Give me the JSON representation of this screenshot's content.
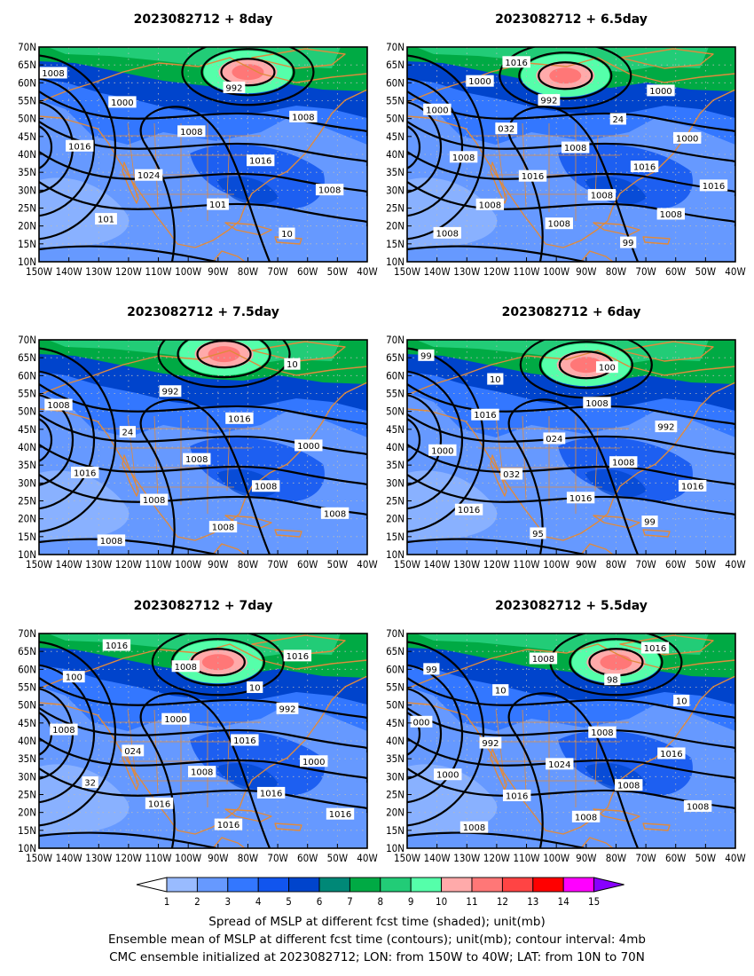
{
  "panels": [
    {
      "id": "p8",
      "title": "2023082712 + 8day",
      "low": {
        "lon": -80,
        "lat": 63,
        "label": "992"
      },
      "labels": [
        "1008",
        "992",
        "1000",
        "1008",
        "1008",
        "1016",
        "1016",
        "1024",
        "1008",
        "101",
        "101",
        "10"
      ]
    },
    {
      "id": "p65",
      "title": "2023082712 + 6.5day",
      "low": {
        "lon": -97,
        "lat": 62,
        "label": "992"
      },
      "labels": [
        "1000",
        "1000",
        "992",
        "1000",
        "24",
        "032",
        "1000",
        "1008",
        "1008",
        "1016",
        "1016",
        "1016",
        "1008",
        "1008",
        "1008",
        "1008",
        "1008",
        "99",
        "1016"
      ]
    },
    {
      "id": "p75",
      "title": "2023082712 + 7.5day",
      "low": {
        "lon": -88,
        "lat": 66,
        "label": "992"
      },
      "labels": [
        "992",
        "1008",
        "1016",
        "24",
        "1000",
        "1008",
        "1016",
        "1008",
        "1008",
        "1008",
        "1008",
        "1008",
        "10"
      ]
    },
    {
      "id": "p6",
      "title": "2023082712 + 6day",
      "low": {
        "lon": -90,
        "lat": 63,
        "label": "992"
      },
      "labels": [
        "1008",
        "1016",
        "992",
        "024",
        "1000",
        "1008",
        "032",
        "1016",
        "1016",
        "1016",
        "99",
        "95",
        "99",
        "100",
        "10"
      ]
    },
    {
      "id": "p7",
      "title": "2023082712 + 7day",
      "low": {
        "lon": -90,
        "lat": 62,
        "label": "992"
      },
      "labels": [
        "992",
        "1000",
        "1008",
        "1016",
        "024",
        "1000",
        "1008",
        "32",
        "1016",
        "1016",
        "1016",
        "1016",
        "1016",
        "1016",
        "1008",
        "100",
        "10"
      ]
    },
    {
      "id": "p55",
      "title": "2023082712 + 5.5day",
      "low": {
        "lon": -80,
        "lat": 62,
        "label": "992"
      },
      "labels": [
        "000",
        "1008",
        "992",
        "1016",
        "1024",
        "1000",
        "1008",
        "1016",
        "1008",
        "1008",
        "1008",
        "1016",
        "1008",
        "99",
        "98",
        "10",
        "10"
      ]
    }
  ],
  "axes": {
    "lon_range": [
      -150,
      -40
    ],
    "lat_range": [
      10,
      70
    ],
    "x_ticks": [
      "150W",
      "140W",
      "130W",
      "120W",
      "110W",
      "100W",
      "90W",
      "80W",
      "70W",
      "60W",
      "50W",
      "40W"
    ],
    "y_ticks": [
      "10N",
      "15N",
      "20N",
      "25N",
      "30N",
      "35N",
      "40N",
      "45N",
      "50N",
      "55N",
      "60N",
      "65N",
      "70N"
    ]
  },
  "colorbar": {
    "levels": [
      "1",
      "2",
      "3",
      "4",
      "5",
      "6",
      "7",
      "8",
      "9",
      "10",
      "11",
      "12",
      "13",
      "14",
      "15"
    ],
    "colors": [
      "#ffffff",
      "#99bbff",
      "#6699ff",
      "#3377ff",
      "#1155ee",
      "#0044cc",
      "#008877",
      "#00aa44",
      "#22cc77",
      "#55ffaa",
      "#ffaaaa",
      "#ff7777",
      "#ff4444",
      "#ff0000",
      "#ff00ff",
      "#8800ff"
    ]
  },
  "captions": [
    "Spread of MSLP at different fcst time (shaded); unit(mb)",
    "Ensemble mean of MSLP at different fcst time (contours); unit(mb); contour interval: 4mb",
    "CMC ensemble initialized at 2023082712; LON: from 150W to 40W; LAT: from 10N to 70N"
  ],
  "style": {
    "coast": "#e08a3c",
    "contour": "#000000",
    "grid": "#bbbbbb"
  }
}
